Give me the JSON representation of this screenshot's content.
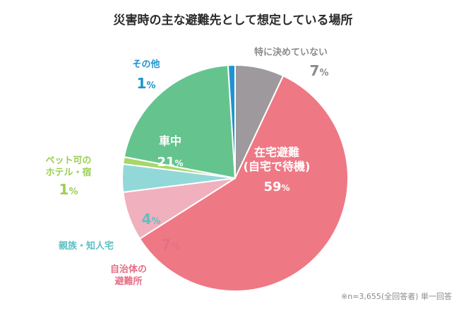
{
  "chart_data": {
    "type": "pie",
    "title": "災害時の主な避難先として想定している場所",
    "note": "※n=3,655(全回答者) 単一回答",
    "slices": [
      {
        "label_lines": [
          "特に決めていない"
        ],
        "percent_label": "7",
        "unit": "%",
        "value": 7,
        "color": "#9d999d",
        "text_color": "#8c8c8c"
      },
      {
        "label_lines": [
          "在宅避難",
          "(自宅で待機)"
        ],
        "percent_label": "59",
        "unit": "%",
        "value": 59,
        "color": "#ef7885",
        "text_color": "#ffffff"
      },
      {
        "label_lines": [
          "自治体の",
          "避難所"
        ],
        "percent_label": "7",
        "unit": "%",
        "value": 7,
        "color": "#f1b0bd",
        "text_color": "#e46f86"
      },
      {
        "label_lines": [
          "親族・知人宅"
        ],
        "percent_label": "4",
        "unit": "%",
        "value": 4,
        "color": "#93d8d9",
        "text_color": "#5ec0c3"
      },
      {
        "label_lines": [
          "ペット可の",
          "ホテル・宿"
        ],
        "percent_label": "1",
        "unit": "%",
        "value": 1,
        "color": "#a8d66a",
        "text_color": "#9bcf52"
      },
      {
        "label_lines": [
          "車中"
        ],
        "percent_label": "21",
        "unit": "%",
        "value": 21,
        "color": "#65c48e",
        "text_color": "#ffffff"
      },
      {
        "label_lines": [
          "その他"
        ],
        "percent_label": "1",
        "unit": "%",
        "value": 1,
        "color": "#1f93cf",
        "text_color": "#1f93cf"
      }
    ]
  }
}
